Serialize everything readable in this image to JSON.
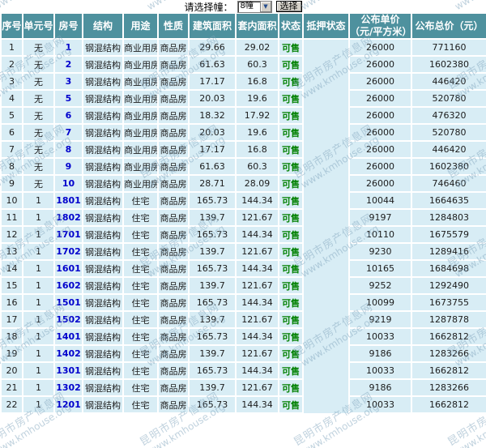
{
  "toolbar": {
    "label": "请选择幢：",
    "select_value": "8幢",
    "button_label": "选择"
  },
  "watermark": {
    "line1": "昆明市房产信息网",
    "line2": "www.kmhouse.org"
  },
  "colors": {
    "header_bg": "#4e919e",
    "row_bg": "#d8edf5",
    "room_link": "#0000cc",
    "status_green": "#008000"
  },
  "table": {
    "headers": [
      "序号",
      "单元号",
      "房号",
      "结构",
      "用途",
      "性质",
      "建筑面积",
      "套内面积",
      "状态",
      "抵押状态",
      "公布单价（元/平方米）",
      "公布总价（元）"
    ],
    "rows": [
      [
        "1",
        "无",
        "1",
        "钢混结构",
        "商业用房",
        "商品房",
        "29.66",
        "29.02",
        "可售",
        "",
        "26000",
        "771160"
      ],
      [
        "2",
        "无",
        "2",
        "钢混结构",
        "商业用房",
        "商品房",
        "61.63",
        "60.3",
        "可售",
        "",
        "26000",
        "1602380"
      ],
      [
        "3",
        "无",
        "3",
        "钢混结构",
        "商业用房",
        "商品房",
        "17.17",
        "16.8",
        "可售",
        "",
        "26000",
        "446420"
      ],
      [
        "4",
        "无",
        "5",
        "钢混结构",
        "商业用房",
        "商品房",
        "20.03",
        "19.6",
        "可售",
        "",
        "26000",
        "520780"
      ],
      [
        "5",
        "无",
        "6",
        "钢混结构",
        "商业用房",
        "商品房",
        "18.32",
        "17.92",
        "可售",
        "",
        "26000",
        "476320"
      ],
      [
        "6",
        "无",
        "7",
        "钢混结构",
        "商业用房",
        "商品房",
        "20.03",
        "19.6",
        "可售",
        "",
        "26000",
        "520780"
      ],
      [
        "7",
        "无",
        "8",
        "钢混结构",
        "商业用房",
        "商品房",
        "17.17",
        "16.8",
        "可售",
        "",
        "26000",
        "446420"
      ],
      [
        "8",
        "无",
        "9",
        "钢混结构",
        "商业用房",
        "商品房",
        "61.63",
        "60.3",
        "可售",
        "",
        "26000",
        "1602380"
      ],
      [
        "9",
        "无",
        "10",
        "钢混结构",
        "商业用房",
        "商品房",
        "28.71",
        "28.09",
        "可售",
        "",
        "26000",
        "746460"
      ],
      [
        "10",
        "1",
        "1801",
        "钢混结构",
        "住宅",
        "商品房",
        "165.73",
        "144.34",
        "可售",
        "",
        "10044",
        "1664635"
      ],
      [
        "11",
        "1",
        "1802",
        "钢混结构",
        "住宅",
        "商品房",
        "139.7",
        "121.67",
        "可售",
        "",
        "9197",
        "1284803"
      ],
      [
        "12",
        "1",
        "1701",
        "钢混结构",
        "住宅",
        "商品房",
        "165.73",
        "144.34",
        "可售",
        "",
        "10110",
        "1675579"
      ],
      [
        "13",
        "1",
        "1702",
        "钢混结构",
        "住宅",
        "商品房",
        "139.7",
        "121.67",
        "可售",
        "",
        "9230",
        "1289416"
      ],
      [
        "14",
        "1",
        "1601",
        "钢混结构",
        "住宅",
        "商品房",
        "165.73",
        "144.34",
        "可售",
        "",
        "10165",
        "1684698"
      ],
      [
        "15",
        "1",
        "1602",
        "钢混结构",
        "住宅",
        "商品房",
        "139.7",
        "121.67",
        "可售",
        "",
        "9252",
        "1292490"
      ],
      [
        "16",
        "1",
        "1501",
        "钢混结构",
        "住宅",
        "商品房",
        "165.73",
        "144.34",
        "可售",
        "",
        "10099",
        "1673755"
      ],
      [
        "17",
        "1",
        "1502",
        "钢混结构",
        "住宅",
        "商品房",
        "139.7",
        "121.67",
        "可售",
        "",
        "9219",
        "1287878"
      ],
      [
        "18",
        "1",
        "1401",
        "钢混结构",
        "住宅",
        "商品房",
        "165.73",
        "144.34",
        "可售",
        "",
        "10033",
        "1662812"
      ],
      [
        "19",
        "1",
        "1402",
        "钢混结构",
        "住宅",
        "商品房",
        "139.7",
        "121.67",
        "可售",
        "",
        "9186",
        "1283266"
      ],
      [
        "20",
        "1",
        "1301",
        "钢混结构",
        "住宅",
        "商品房",
        "165.73",
        "144.34",
        "可售",
        "",
        "10033",
        "1662812"
      ],
      [
        "21",
        "1",
        "1302",
        "钢混结构",
        "住宅",
        "商品房",
        "139.7",
        "121.67",
        "可售",
        "",
        "9186",
        "1283266"
      ],
      [
        "22",
        "1",
        "1201",
        "钢混结构",
        "住宅",
        "商品房",
        "165.73",
        "144.34",
        "可售",
        "",
        "10033",
        "1662812"
      ]
    ]
  }
}
